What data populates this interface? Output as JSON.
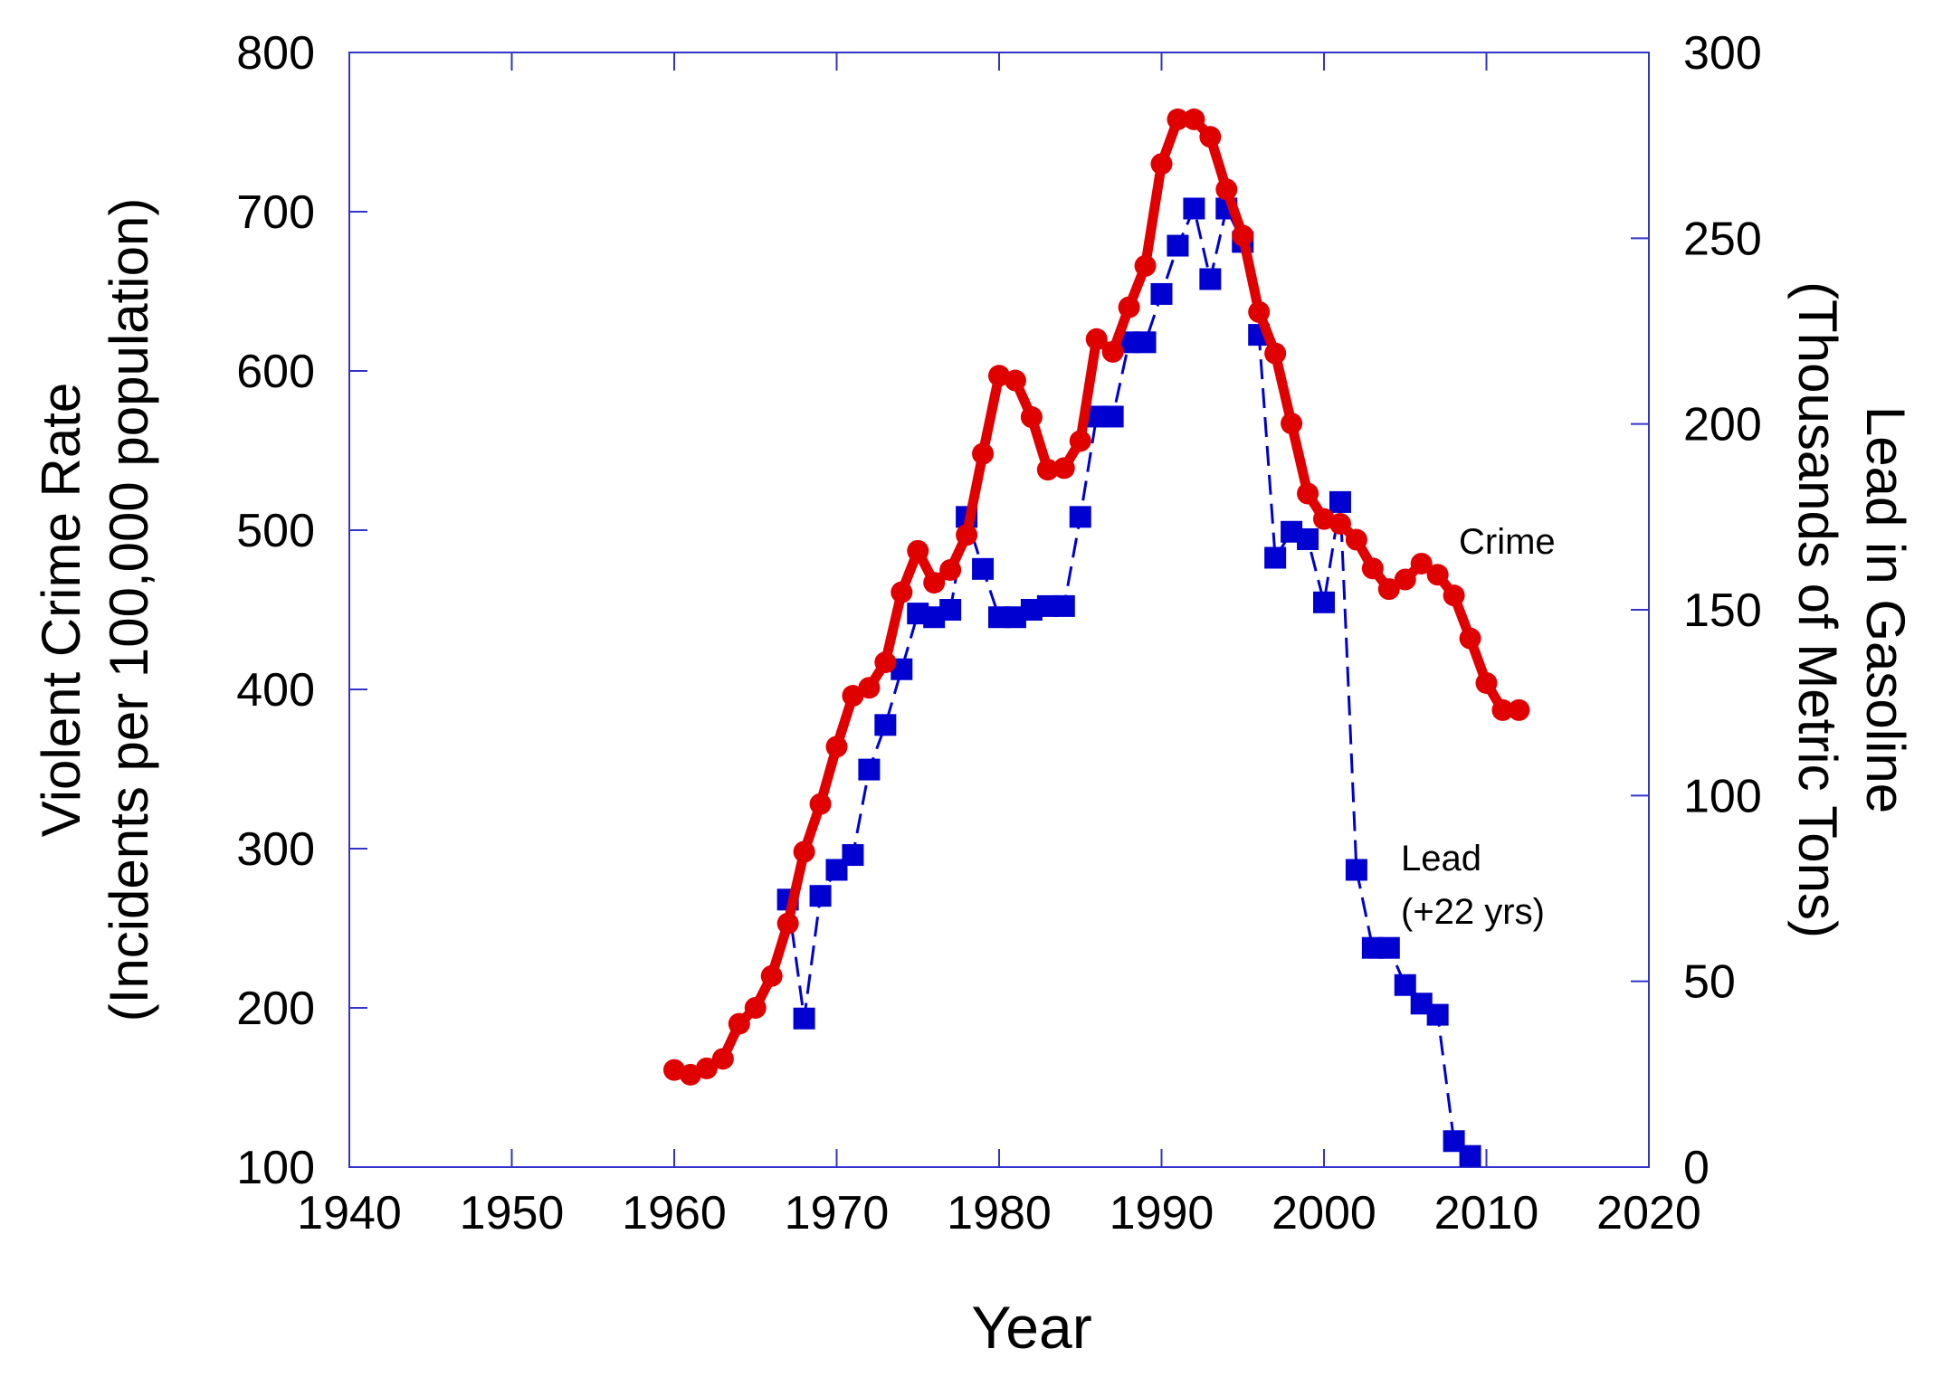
{
  "chart_data": {
    "type": "line",
    "xlabel": "Year",
    "ylabel_left": [
      "Violent Crime Rate",
      "(Incidents per 100,000 population)"
    ],
    "ylabel_right": [
      "Lead in Gasoline",
      "(Thousands of Metric Tons)"
    ],
    "xlim": [
      1940,
      2020
    ],
    "ylim_left": [
      100,
      800
    ],
    "ylim_right": [
      0,
      300
    ],
    "x_ticks": [
      "1940",
      "1950",
      "1960",
      "1970",
      "1980",
      "1990",
      "2000",
      "2010",
      "2020"
    ],
    "y_left_ticks": [
      "100",
      "200",
      "300",
      "400",
      "500",
      "600",
      "700",
      "800"
    ],
    "y_right_ticks": [
      "0",
      "50",
      "100",
      "150",
      "200",
      "250",
      "300"
    ],
    "grid": false,
    "annotations": {
      "crime": "Crime",
      "lead_line1": "Lead",
      "lead_line2": "(+22 yrs)"
    },
    "series": [
      {
        "name": "Crime",
        "axis": "left",
        "color": "#e00000",
        "marker": "circle",
        "x": [
          1960,
          1961,
          1962,
          1963,
          1964,
          1965,
          1966,
          1967,
          1968,
          1969,
          1970,
          1971,
          1972,
          1973,
          1974,
          1975,
          1976,
          1977,
          1978,
          1979,
          1980,
          1981,
          1982,
          1983,
          1984,
          1985,
          1986,
          1987,
          1988,
          1989,
          1990,
          1991,
          1992,
          1993,
          1994,
          1995,
          1996,
          1997,
          1998,
          1999,
          2000,
          2001,
          2002,
          2003,
          2004,
          2005,
          2006,
          2007,
          2008,
          2009,
          2010,
          2011,
          2012
        ],
        "y": [
          161,
          158,
          162,
          168,
          190,
          200,
          220,
          253,
          298,
          328,
          364,
          396,
          401,
          417,
          461,
          487,
          467,
          475,
          497,
          548,
          597,
          594,
          571,
          538,
          539,
          556,
          620,
          612,
          640,
          666,
          730,
          758,
          758,
          747,
          714,
          685,
          637,
          611,
          567,
          523,
          507,
          504,
          494,
          476,
          463,
          469,
          479,
          472,
          459,
          432,
          404,
          387,
          387
        ]
      },
      {
        "name": "Lead (+22 yrs)",
        "axis": "right",
        "color": "#0000d0",
        "marker": "square",
        "x": [
          1967,
          1968,
          1969,
          1970,
          1971,
          1972,
          1973,
          1974,
          1975,
          1976,
          1977,
          1978,
          1979,
          1980,
          1981,
          1982,
          1983,
          1984,
          1985,
          1986,
          1987,
          1988,
          1989,
          1990,
          1991,
          1992,
          1993,
          1994,
          1995,
          1996,
          1997,
          1998,
          1999,
          2000,
          2001,
          2002,
          2003,
          2004,
          2005,
          2006,
          2007,
          2008,
          2009
        ],
        "y": [
          72,
          40,
          73,
          80,
          84,
          107,
          119,
          134,
          149,
          148,
          150,
          175,
          161,
          148,
          148,
          150,
          151,
          151,
          175,
          202,
          202,
          222,
          222,
          235,
          248,
          258,
          239,
          258,
          249,
          224,
          164,
          171,
          169,
          152,
          179,
          80,
          59,
          59,
          49,
          44,
          41,
          7,
          3
        ]
      }
    ]
  }
}
